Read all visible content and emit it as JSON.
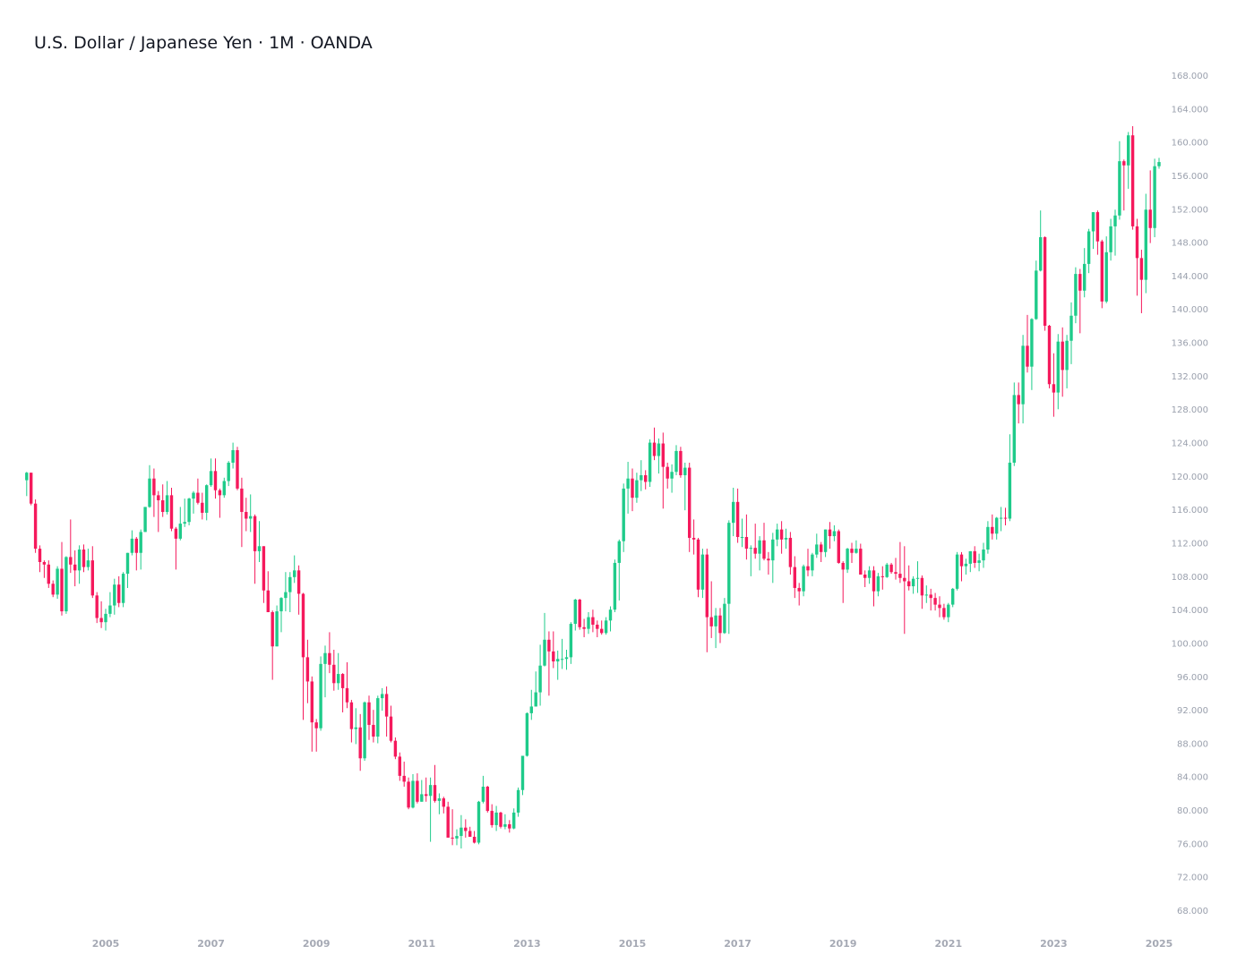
{
  "chart_data": {
    "type": "candlestick",
    "title": "U.S. Dollar / Japanese Yen · 1M · OANDA",
    "up_color": "#1fcb8a",
    "down_color": "#f5195c",
    "ylim": [
      66,
      170
    ],
    "yticks": [
      {
        "value": 68,
        "label": "68.000"
      },
      {
        "value": 72,
        "label": "72.000"
      },
      {
        "value": 76,
        "label": "76.000"
      },
      {
        "value": 80,
        "label": "80.000"
      },
      {
        "value": 84,
        "label": "84.000"
      },
      {
        "value": 88,
        "label": "88.000"
      },
      {
        "value": 92,
        "label": "92.000"
      },
      {
        "value": 96,
        "label": "96.000"
      },
      {
        "value": 100,
        "label": "100.000"
      },
      {
        "value": 104,
        "label": "104.000"
      },
      {
        "value": 108,
        "label": "108.000"
      },
      {
        "value": 112,
        "label": "112.000"
      },
      {
        "value": 116,
        "label": "116.000"
      },
      {
        "value": 120,
        "label": "120.000"
      },
      {
        "value": 124,
        "label": "124.000"
      },
      {
        "value": 128,
        "label": "128.000"
      },
      {
        "value": 132,
        "label": "132.000"
      },
      {
        "value": 136,
        "label": "136.000"
      },
      {
        "value": 140,
        "label": "140.000"
      },
      {
        "value": 144,
        "label": "144.000"
      },
      {
        "value": 148,
        "label": "148.000"
      },
      {
        "value": 152,
        "label": "152.000"
      },
      {
        "value": 156,
        "label": "156.000"
      },
      {
        "value": 160,
        "label": "160.000"
      },
      {
        "value": 164,
        "label": "164.000"
      },
      {
        "value": 168,
        "label": "168.000"
      }
    ],
    "categories": [
      null,
      null,
      null,
      null,
      null,
      null,
      null,
      null,
      null,
      null,
      null,
      null,
      null,
      null,
      null,
      null,
      null,
      null,
      "2005",
      null,
      null,
      null,
      null,
      null,
      null,
      null,
      null,
      null,
      null,
      null,
      null,
      null,
      null,
      null,
      null,
      null,
      null,
      null,
      null,
      null,
      null,
      null,
      "2007",
      null,
      null,
      null,
      null,
      null,
      null,
      null,
      null,
      null,
      null,
      null,
      null,
      null,
      null,
      null,
      null,
      null,
      null,
      null,
      null,
      null,
      null,
      null,
      "2009",
      null,
      null,
      null,
      null,
      null,
      null,
      null,
      null,
      null,
      null,
      null,
      null,
      null,
      null,
      null,
      null,
      null,
      null,
      null,
      null,
      null,
      null,
      null,
      "2011",
      null,
      null,
      null,
      null,
      null,
      null,
      null,
      null,
      null,
      null,
      null,
      null,
      null,
      null,
      null,
      null,
      null,
      null,
      null,
      null,
      null,
      null,
      null,
      "2013",
      null,
      null,
      null,
      null,
      null,
      null,
      null,
      null,
      null,
      null,
      null,
      null,
      null,
      null,
      null,
      null,
      null,
      null,
      null,
      null,
      null,
      null,
      null,
      "2015",
      null,
      null,
      null,
      null,
      null,
      null,
      null,
      null,
      null,
      null,
      null,
      null,
      null,
      null,
      null,
      null,
      null,
      null,
      null,
      null,
      null,
      null,
      null,
      "2017",
      null,
      null,
      null,
      null,
      null,
      null,
      null,
      null,
      null,
      null,
      null,
      null,
      null,
      null,
      null,
      null,
      null,
      null,
      null,
      null,
      null,
      null,
      null,
      "2019",
      null,
      null,
      null,
      null,
      null,
      null,
      null,
      null,
      null,
      null,
      null,
      null,
      null,
      null,
      null,
      null,
      null,
      null,
      null,
      null,
      null,
      null,
      null,
      "2021",
      null,
      null,
      null,
      null,
      null,
      null,
      null,
      null,
      null,
      null,
      null,
      null,
      null,
      null,
      null,
      null,
      null,
      null,
      null,
      null,
      null,
      null,
      null,
      "2023",
      null,
      null,
      null,
      null,
      null,
      null,
      null,
      null,
      null,
      null,
      null,
      null,
      null,
      null,
      null,
      null,
      null,
      null,
      null,
      null,
      null,
      null,
      null,
      "2025"
    ],
    "open": [
      119.6,
      120.5,
      116.8,
      111.4,
      109.8,
      109.5,
      107.2,
      105.9,
      109.0,
      103.9,
      110.4,
      109.5,
      108.8,
      111.3,
      109.2,
      110.0,
      105.8,
      103.1,
      102.6,
      103.6,
      104.6,
      107.1,
      104.9,
      108.4,
      110.9,
      112.6,
      110.9,
      113.4,
      116.4,
      119.8,
      117.8,
      117.2,
      115.8,
      117.8,
      113.8,
      112.6,
      114.4,
      114.6,
      117.4,
      118.1,
      116.9,
      115.7,
      119.0,
      120.7,
      118.4,
      117.8,
      119.5,
      121.7,
      123.2,
      118.6,
      115.8,
      115.0,
      115.3,
      111.1,
      111.7,
      106.4,
      103.8,
      99.7,
      103.9,
      105.5,
      106.2,
      108.0,
      108.8,
      106.0,
      98.4,
      95.5,
      90.6,
      89.9,
      97.6,
      98.9,
      97.5,
      95.3,
      96.4,
      94.7,
      93.0,
      89.8,
      90.0,
      86.3,
      93.0,
      90.3,
      88.9,
      93.5,
      94.0,
      91.3,
      88.4,
      86.5,
      84.2,
      83.5,
      80.4,
      83.6,
      81.1,
      82.0,
      81.8,
      83.1,
      81.2,
      81.5,
      80.5,
      76.8,
      76.7,
      77.0,
      78.0,
      77.6,
      76.9,
      76.2,
      81.1,
      82.9,
      80.0,
      78.3,
      79.8,
      78.1,
      78.4,
      77.9,
      79.8,
      82.5,
      86.6,
      91.7,
      92.5,
      94.2,
      97.4,
      100.5,
      99.1,
      97.9,
      98.2,
      98.2,
      98.4,
      102.4,
      105.3,
      102.0,
      101.8,
      103.2,
      102.3,
      101.8,
      101.3,
      102.8,
      104.1,
      109.7,
      112.3,
      118.6,
      119.8,
      117.5,
      119.6,
      120.2,
      119.4,
      124.1,
      122.5,
      124.0,
      121.2,
      119.8,
      120.6,
      123.1,
      120.2,
      121.1,
      112.7,
      112.5,
      106.5,
      110.7,
      103.2,
      102.1,
      103.4,
      101.3,
      104.8,
      114.5,
      117.0,
      112.8,
      112.8,
      111.4,
      111.5,
      110.8,
      112.4,
      110.2,
      110.0,
      112.5,
      113.7,
      112.5,
      112.7,
      109.2,
      106.7,
      106.3,
      109.3,
      108.8,
      110.7,
      111.9,
      111.0,
      113.7,
      112.9,
      113.5,
      109.7,
      108.9,
      111.4,
      110.9,
      111.4,
      108.3,
      107.9,
      108.8,
      106.3,
      108.1,
      108.0,
      109.5,
      108.6,
      108.4,
      107.9,
      107.5,
      106.9,
      107.8,
      107.9,
      105.8,
      105.9,
      105.5,
      104.7,
      104.3,
      103.2,
      104.7,
      106.6,
      110.7,
      109.3,
      109.6,
      111.1,
      109.7,
      110.0,
      111.3,
      114.0,
      113.2,
      115.1,
      115.1,
      115.0,
      121.7,
      129.8,
      128.7,
      135.7,
      133.2,
      138.9,
      144.7,
      148.7,
      138.1,
      131.1,
      130.1,
      136.2,
      132.8,
      136.3,
      139.3,
      144.3,
      142.3,
      145.5,
      149.4,
      151.7,
      148.2,
      141.0,
      146.9,
      150.0,
      151.3,
      157.8,
      157.3,
      160.9,
      150.0,
      146.2,
      143.6,
      152.0,
      149.8,
      157.2
    ],
    "high": [
      120.6,
      120.5,
      117.3,
      111.8,
      110.0,
      110.0,
      107.6,
      109.3,
      112.2,
      110.5,
      114.9,
      111.2,
      111.8,
      111.9,
      111.4,
      111.7,
      106.2,
      105.1,
      104.2,
      106.2,
      107.8,
      108.1,
      108.6,
      110.9,
      113.6,
      112.8,
      113.7,
      116.4,
      121.4,
      121.0,
      118.3,
      119.1,
      119.5,
      118.7,
      114.0,
      116.4,
      117.4,
      117.5,
      118.3,
      119.8,
      118.1,
      119.1,
      122.2,
      122.2,
      118.6,
      119.9,
      121.9,
      124.1,
      123.6,
      119.9,
      117.5,
      117.9,
      115.5,
      114.7,
      111.7,
      108.7,
      104.0,
      104.6,
      105.6,
      108.6,
      108.6,
      110.6,
      109.4,
      106.1,
      100.5,
      96.1,
      91.0,
      98.5,
      99.8,
      101.4,
      99.3,
      98.9,
      96.5,
      97.8,
      93.3,
      92.3,
      91.6,
      93.1,
      93.8,
      92.1,
      93.8,
      94.7,
      94.9,
      92.6,
      88.8,
      87.0,
      85.9,
      84.0,
      84.4,
      84.5,
      83.7,
      84.0,
      84.0,
      85.5,
      82.1,
      81.7,
      81.1,
      80.2,
      77.8,
      79.5,
      79.0,
      78.1,
      77.6,
      81.2,
      84.2,
      83.0,
      80.8,
      80.6,
      79.9,
      79.6,
      78.9,
      80.3,
      82.8,
      86.6,
      91.8,
      94.5,
      96.7,
      99.9,
      103.7,
      101.5,
      101.5,
      99.2,
      100.6,
      99.3,
      102.6,
      105.4,
      105.4,
      103.0,
      103.8,
      104.1,
      102.8,
      102.8,
      103.2,
      104.5,
      110.1,
      112.5,
      119.2,
      121.8,
      121.0,
      120.5,
      122.0,
      120.8,
      124.5,
      125.9,
      124.6,
      125.3,
      121.7,
      121.5,
      123.8,
      123.6,
      121.7,
      121.7,
      114.9,
      112.7,
      111.4,
      111.4,
      107.5,
      104.3,
      104.3,
      105.5,
      114.8,
      118.7,
      118.6,
      115.0,
      115.5,
      111.8,
      114.4,
      112.9,
      114.5,
      111.0,
      113.3,
      114.4,
      114.7,
      113.8,
      113.4,
      110.5,
      107.3,
      109.5,
      111.4,
      110.9,
      113.2,
      112.2,
      113.7,
      114.6,
      114.2,
      113.7,
      109.9,
      111.5,
      112.1,
      112.4,
      112.0,
      108.8,
      109.3,
      109.3,
      108.5,
      109.3,
      109.7,
      109.7,
      110.3,
      112.2,
      111.7,
      109.4,
      108.1,
      109.9,
      108.2,
      107.0,
      106.6,
      106.1,
      105.7,
      104.8,
      104.9,
      106.7,
      111.0,
      111.0,
      110.2,
      111.1,
      111.7,
      110.8,
      112.1,
      114.7,
      115.5,
      115.2,
      116.4,
      116.3,
      125.1,
      131.3,
      131.3,
      137.0,
      139.4,
      139.0,
      145.9,
      151.9,
      148.8,
      138.2,
      134.8,
      137.1,
      137.9,
      137.0,
      140.9,
      145.1,
      144.9,
      147.4,
      149.7,
      151.7,
      151.9,
      148.4,
      148.8,
      150.9,
      152.0,
      160.2,
      158.0,
      161.3,
      162.0,
      150.9,
      147.2,
      153.9,
      156.7,
      158.1,
      158.2
    ],
    "low": [
      117.7,
      116.6,
      110.9,
      108.6,
      107.9,
      106.7,
      105.6,
      105.4,
      103.4,
      103.6,
      108.5,
      106.9,
      107.2,
      108.6,
      108.8,
      105.5,
      102.5,
      101.9,
      101.6,
      103.2,
      103.5,
      104.4,
      104.4,
      106.7,
      110.6,
      108.8,
      108.9,
      113.4,
      116.3,
      115.2,
      113.4,
      115.2,
      115.5,
      113.5,
      108.9,
      112.4,
      114.0,
      114.2,
      115.6,
      116.7,
      114.9,
      114.8,
      118.8,
      117.4,
      115.1,
      117.5,
      118.9,
      121.0,
      118.4,
      111.6,
      113.5,
      113.4,
      107.2,
      109.8,
      104.9,
      103.8,
      95.7,
      99.7,
      101.4,
      103.9,
      103.8,
      107.3,
      103.5,
      90.9,
      92.9,
      87.1,
      87.1,
      89.6,
      93.6,
      96.5,
      94.4,
      94.5,
      91.8,
      92.3,
      88.2,
      88.0,
      84.8,
      86.0,
      88.5,
      88.2,
      88.1,
      92.0,
      88.9,
      88.2,
      86.2,
      83.6,
      82.9,
      80.2,
      80.3,
      80.9,
      81.1,
      81.1,
      76.3,
      81.0,
      79.6,
      79.7,
      76.8,
      75.9,
      75.9,
      75.5,
      76.8,
      76.9,
      76.1,
      76.0,
      80.9,
      79.8,
      78.0,
      77.6,
      77.9,
      77.8,
      77.4,
      77.8,
      79.3,
      81.9,
      86.5,
      90.9,
      92.5,
      92.6,
      97.3,
      93.8,
      97.1,
      95.7,
      97.0,
      96.9,
      97.6,
      101.6,
      101.7,
      100.8,
      101.2,
      101.4,
      100.8,
      101.1,
      101.1,
      101.5,
      103.8,
      105.2,
      111.0,
      115.6,
      115.9,
      116.9,
      118.3,
      118.5,
      118.8,
      122.0,
      120.4,
      116.2,
      118.6,
      118.1,
      120.2,
      119.9,
      116.0,
      111.0,
      110.7,
      105.6,
      105.5,
      99.0,
      100.7,
      99.5,
      100.1,
      101.2,
      101.2,
      112.9,
      112.1,
      111.6,
      110.1,
      108.1,
      110.2,
      108.8,
      110.0,
      108.3,
      107.3,
      111.7,
      110.8,
      111.4,
      108.3,
      105.5,
      104.6,
      105.7,
      108.1,
      108.1,
      110.3,
      109.8,
      110.4,
      111.4,
      112.3,
      109.6,
      104.9,
      108.5,
      109.7,
      110.8,
      108.3,
      106.8,
      107.2,
      104.5,
      105.7,
      106.5,
      107.9,
      108.4,
      107.7,
      107.3,
      101.2,
      106.4,
      106.0,
      106.1,
      104.2,
      104.9,
      104.0,
      104.0,
      103.2,
      102.9,
      102.6,
      104.4,
      106.4,
      107.5,
      108.3,
      108.6,
      109.1,
      108.7,
      109.1,
      110.8,
      112.5,
      112.5,
      113.5,
      114.2,
      114.7,
      121.3,
      126.4,
      126.4,
      132.5,
      130.4,
      138.8,
      144.6,
      137.5,
      130.6,
      127.2,
      128.1,
      129.6,
      130.6,
      133.5,
      138.4,
      137.2,
      141.5,
      144.4,
      147.3,
      146.6,
      140.2,
      140.8,
      145.9,
      146.5,
      150.8,
      151.9,
      154.5,
      149.6,
      141.7,
      139.6,
      142.0,
      148.0,
      148.7,
      156.9
    ],
    "close": [
      120.5,
      116.8,
      111.4,
      109.8,
      109.5,
      107.2,
      105.9,
      109.0,
      103.9,
      110.4,
      109.5,
      108.8,
      111.3,
      109.2,
      110.0,
      105.8,
      103.1,
      102.6,
      103.6,
      104.6,
      107.1,
      104.9,
      108.4,
      110.9,
      112.6,
      110.9,
      113.4,
      116.4,
      119.8,
      117.8,
      117.2,
      115.8,
      117.8,
      113.8,
      112.6,
      114.4,
      114.6,
      117.4,
      118.1,
      116.9,
      115.7,
      119.0,
      120.7,
      118.4,
      117.8,
      119.5,
      121.7,
      123.2,
      118.6,
      115.8,
      115.0,
      115.3,
      111.1,
      111.7,
      106.4,
      103.8,
      99.7,
      103.9,
      105.5,
      106.2,
      108.0,
      108.8,
      106.0,
      98.4,
      95.5,
      90.6,
      89.9,
      97.6,
      98.9,
      97.5,
      95.3,
      96.4,
      94.7,
      93.0,
      89.8,
      90.0,
      86.3,
      93.0,
      90.3,
      88.9,
      93.5,
      94.0,
      91.3,
      88.4,
      86.5,
      84.2,
      83.5,
      80.4,
      83.6,
      81.1,
      82.0,
      81.8,
      83.1,
      81.2,
      81.5,
      80.5,
      76.8,
      76.7,
      77.0,
      78.0,
      77.6,
      76.9,
      76.2,
      81.1,
      82.9,
      80.0,
      78.3,
      79.8,
      78.1,
      78.4,
      77.9,
      79.8,
      82.5,
      86.6,
      91.7,
      92.5,
      94.2,
      97.4,
      100.5,
      99.1,
      97.9,
      98.2,
      98.2,
      98.4,
      102.4,
      105.3,
      102.0,
      101.8,
      103.2,
      102.3,
      101.8,
      101.3,
      102.8,
      104.1,
      109.7,
      112.3,
      118.6,
      119.8,
      117.5,
      119.6,
      120.2,
      119.4,
      124.1,
      122.5,
      124.0,
      121.2,
      119.8,
      120.6,
      123.1,
      120.2,
      121.1,
      112.7,
      112.5,
      106.5,
      110.7,
      103.2,
      102.1,
      103.4,
      101.3,
      104.8,
      114.5,
      117.0,
      112.8,
      112.8,
      111.4,
      111.5,
      110.8,
      112.4,
      110.2,
      110.0,
      112.5,
      113.7,
      112.5,
      112.7,
      109.2,
      106.7,
      106.3,
      109.3,
      108.8,
      110.7,
      111.9,
      111.0,
      113.7,
      112.9,
      113.5,
      109.7,
      108.9,
      111.4,
      110.9,
      111.4,
      108.3,
      107.9,
      108.8,
      106.3,
      108.1,
      108.0,
      109.5,
      108.6,
      108.4,
      107.9,
      107.5,
      106.9,
      107.8,
      107.9,
      105.8,
      105.9,
      105.5,
      104.7,
      104.3,
      103.2,
      104.7,
      106.6,
      110.7,
      109.3,
      109.6,
      111.1,
      109.7,
      110.0,
      111.3,
      114.0,
      113.2,
      115.1,
      115.1,
      115.0,
      121.7,
      129.8,
      128.7,
      135.7,
      133.2,
      138.9,
      144.7,
      148.7,
      138.1,
      131.1,
      130.1,
      136.2,
      132.8,
      136.3,
      139.3,
      144.3,
      142.3,
      145.5,
      149.4,
      151.7,
      148.2,
      141.0,
      146.9,
      150.0,
      151.3,
      157.8,
      157.3,
      160.9,
      150.0,
      146.2,
      143.6,
      152.0,
      149.8,
      157.2,
      157.7
    ]
  }
}
